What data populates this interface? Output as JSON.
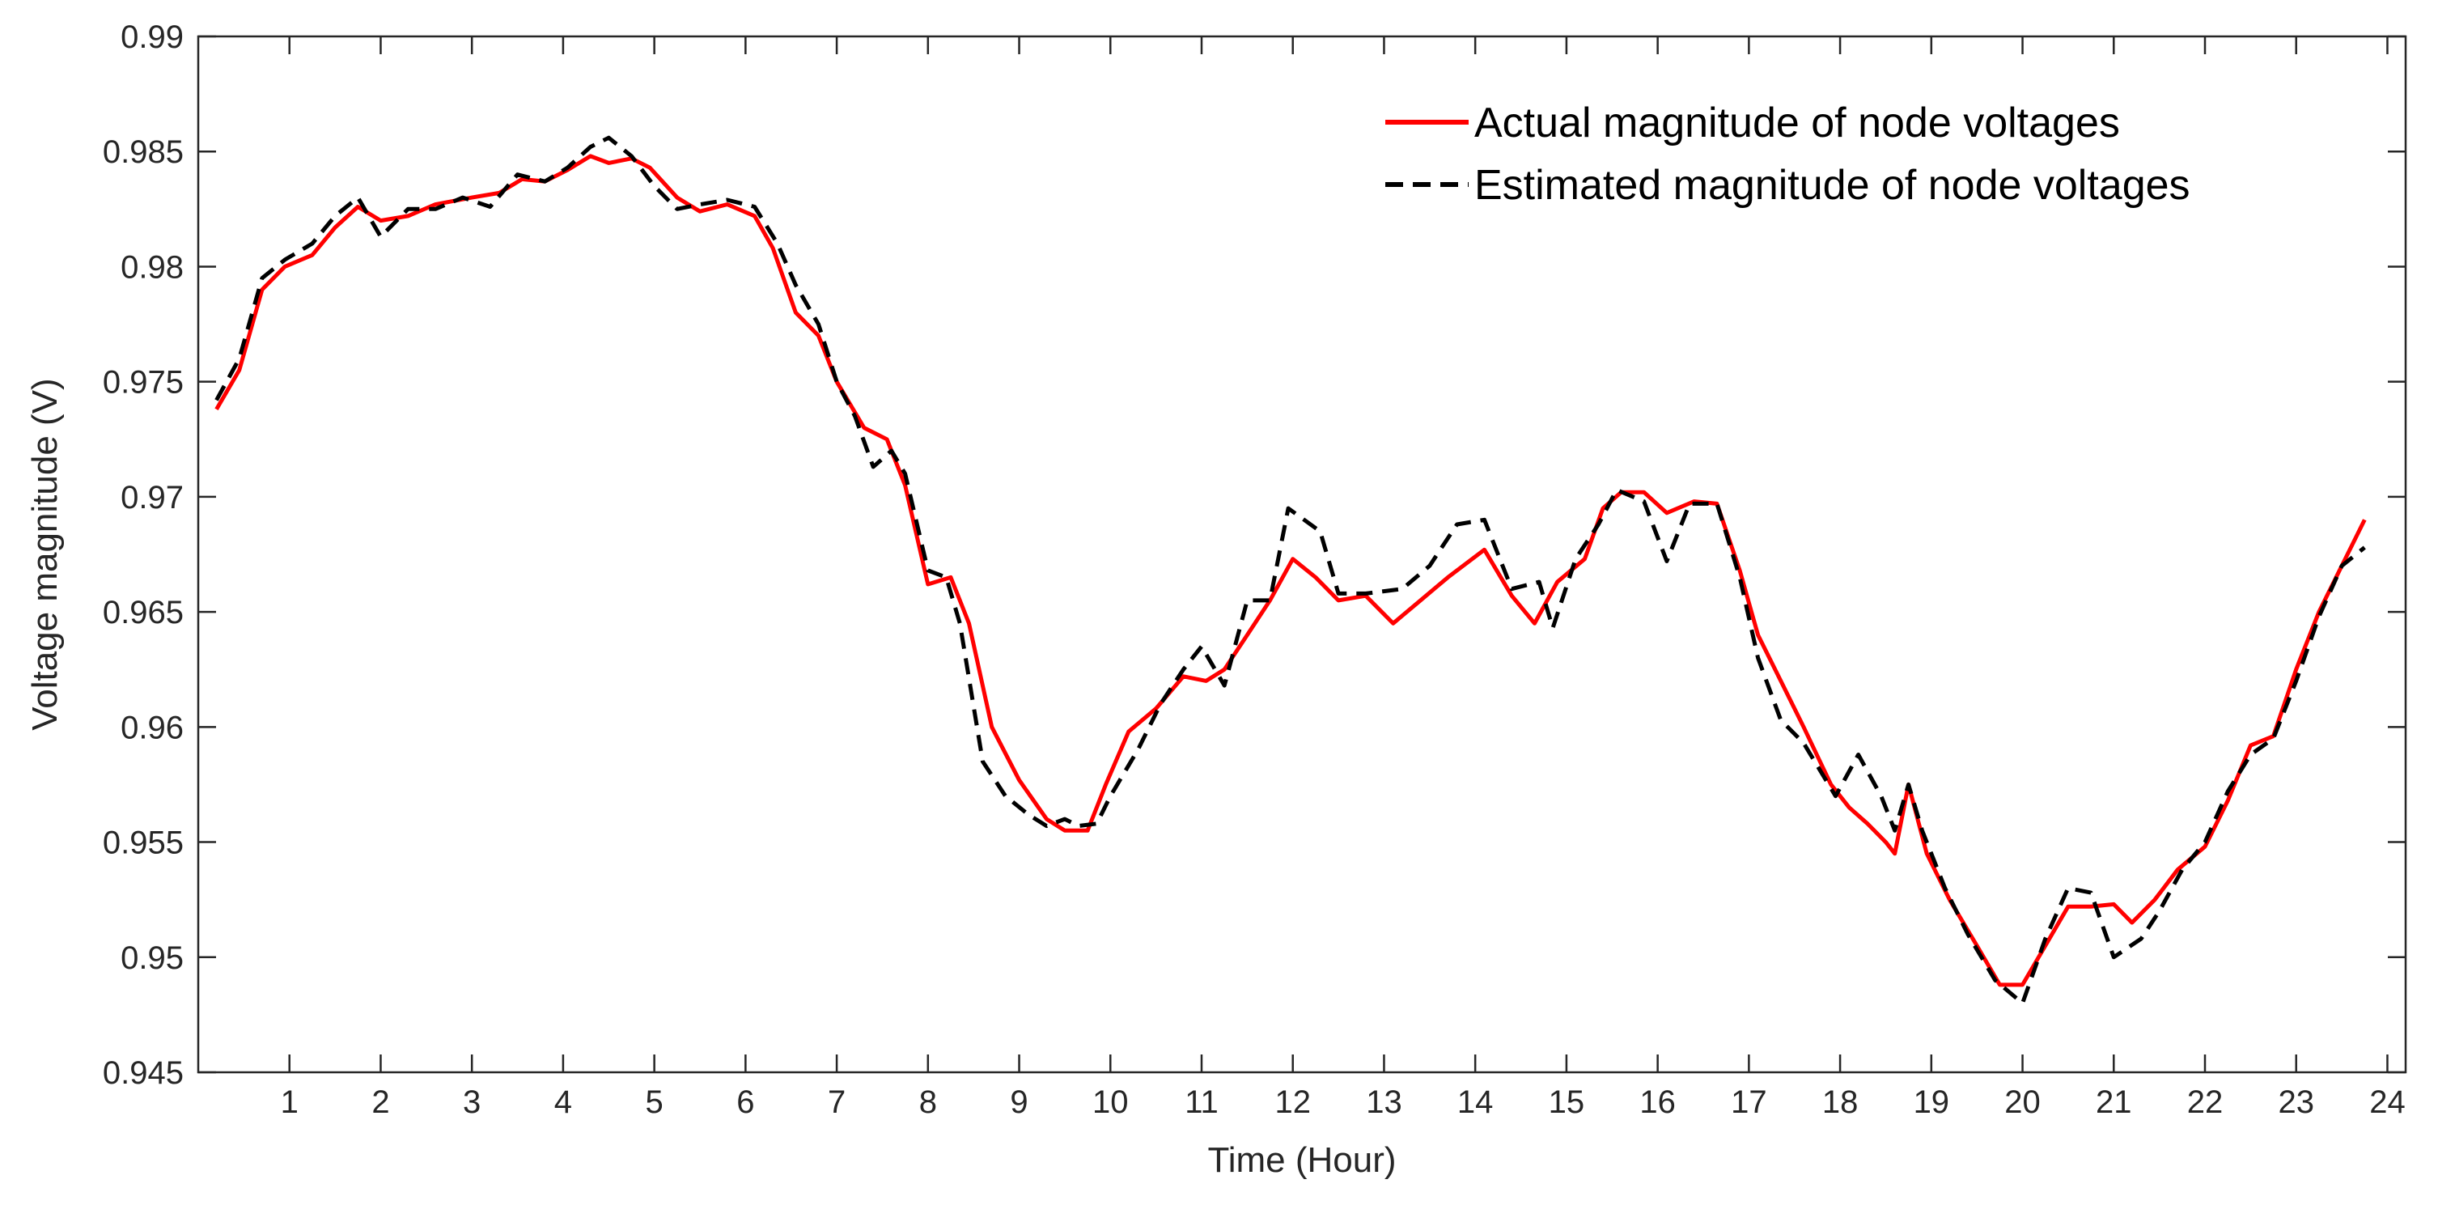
{
  "chart_data": {
    "type": "line",
    "title": "",
    "xlabel": "Time (Hour)",
    "ylabel": "Voltage magnitude (V)",
    "xlim": [
      0,
      24.2
    ],
    "ylim": [
      0.945,
      0.99
    ],
    "x_ticks": [
      "1",
      "2",
      "3",
      "4",
      "5",
      "6",
      "7",
      "8",
      "9",
      "10",
      "11",
      "12",
      "13",
      "14",
      "15",
      "16",
      "17",
      "18",
      "19",
      "20",
      "21",
      "22",
      "23",
      "24"
    ],
    "y_ticks": [
      "0.945",
      "0.95",
      "0.955",
      "0.96",
      "0.965",
      "0.97",
      "0.975",
      "0.98",
      "0.985",
      "0.99"
    ],
    "grid": false,
    "legend_position": "top-right",
    "series": [
      {
        "name": "Actual magnitude of node voltages",
        "color": "#ff0000",
        "style": "solid",
        "points": [
          [
            0.2,
            0.9738
          ],
          [
            0.45,
            0.9755
          ],
          [
            0.7,
            0.979
          ],
          [
            0.95,
            0.98
          ],
          [
            1.25,
            0.9805
          ],
          [
            1.5,
            0.9817
          ],
          [
            1.75,
            0.9826
          ],
          [
            2.0,
            0.982
          ],
          [
            2.3,
            0.9822
          ],
          [
            2.6,
            0.9827
          ],
          [
            3.0,
            0.983
          ],
          [
            3.3,
            0.9832
          ],
          [
            3.55,
            0.9838
          ],
          [
            3.8,
            0.9837
          ],
          [
            4.05,
            0.9842
          ],
          [
            4.3,
            0.9848
          ],
          [
            4.5,
            0.9845
          ],
          [
            4.75,
            0.9847
          ],
          [
            4.95,
            0.9843
          ],
          [
            5.25,
            0.983
          ],
          [
            5.5,
            0.9824
          ],
          [
            5.8,
            0.9827
          ],
          [
            6.1,
            0.9822
          ],
          [
            6.3,
            0.9808
          ],
          [
            6.55,
            0.978
          ],
          [
            6.8,
            0.977
          ],
          [
            7.0,
            0.975
          ],
          [
            7.3,
            0.973
          ],
          [
            7.55,
            0.9725
          ],
          [
            7.75,
            0.9705
          ],
          [
            8.0,
            0.9662
          ],
          [
            8.25,
            0.9665
          ],
          [
            8.45,
            0.9645
          ],
          [
            8.7,
            0.96
          ],
          [
            9.0,
            0.9577
          ],
          [
            9.3,
            0.956
          ],
          [
            9.5,
            0.9555
          ],
          [
            9.75,
            0.9555
          ],
          [
            9.95,
            0.9575
          ],
          [
            10.2,
            0.9598
          ],
          [
            10.5,
            0.9608
          ],
          [
            10.8,
            0.9622
          ],
          [
            11.05,
            0.962
          ],
          [
            11.25,
            0.9625
          ],
          [
            11.5,
            0.964
          ],
          [
            11.75,
            0.9655
          ],
          [
            12.0,
            0.9673
          ],
          [
            12.25,
            0.9665
          ],
          [
            12.5,
            0.9655
          ],
          [
            12.8,
            0.9657
          ],
          [
            13.1,
            0.9645
          ],
          [
            13.4,
            0.9655
          ],
          [
            13.7,
            0.9665
          ],
          [
            14.1,
            0.9677
          ],
          [
            14.4,
            0.9657
          ],
          [
            14.65,
            0.9645
          ],
          [
            14.9,
            0.9663
          ],
          [
            15.2,
            0.9673
          ],
          [
            15.4,
            0.9695
          ],
          [
            15.6,
            0.9702
          ],
          [
            15.85,
            0.9702
          ],
          [
            16.1,
            0.9693
          ],
          [
            16.4,
            0.9698
          ],
          [
            16.65,
            0.9697
          ],
          [
            16.9,
            0.9668
          ],
          [
            17.1,
            0.964
          ],
          [
            17.35,
            0.962
          ],
          [
            17.6,
            0.96
          ],
          [
            17.9,
            0.9575
          ],
          [
            18.1,
            0.9565
          ],
          [
            18.3,
            0.9558
          ],
          [
            18.5,
            0.955
          ],
          [
            18.6,
            0.9545
          ],
          [
            18.75,
            0.9575
          ],
          [
            18.95,
            0.9545
          ],
          [
            19.2,
            0.9525
          ],
          [
            19.5,
            0.9505
          ],
          [
            19.75,
            0.9488
          ],
          [
            20.0,
            0.9488
          ],
          [
            20.25,
            0.9505
          ],
          [
            20.5,
            0.9522
          ],
          [
            20.75,
            0.9522
          ],
          [
            21.0,
            0.9523
          ],
          [
            21.2,
            0.9515
          ],
          [
            21.45,
            0.9525
          ],
          [
            21.7,
            0.9538
          ],
          [
            22.0,
            0.9548
          ],
          [
            22.25,
            0.9568
          ],
          [
            22.5,
            0.9592
          ],
          [
            22.75,
            0.9596
          ],
          [
            23.0,
            0.9625
          ],
          [
            23.25,
            0.965
          ],
          [
            23.5,
            0.967
          ],
          [
            23.75,
            0.969
          ]
        ]
      },
      {
        "name": "Estimated magnitude of node voltages",
        "color": "#000000",
        "style": "dashed",
        "points": [
          [
            0.2,
            0.9742
          ],
          [
            0.45,
            0.976
          ],
          [
            0.7,
            0.9795
          ],
          [
            0.95,
            0.9803
          ],
          [
            1.25,
            0.981
          ],
          [
            1.5,
            0.9822
          ],
          [
            1.75,
            0.983
          ],
          [
            2.0,
            0.9813
          ],
          [
            2.3,
            0.9825
          ],
          [
            2.6,
            0.9825
          ],
          [
            2.9,
            0.983
          ],
          [
            3.2,
            0.9826
          ],
          [
            3.5,
            0.984
          ],
          [
            3.8,
            0.9837
          ],
          [
            4.05,
            0.9843
          ],
          [
            4.3,
            0.9852
          ],
          [
            4.5,
            0.9856
          ],
          [
            4.75,
            0.9848
          ],
          [
            5.0,
            0.9835
          ],
          [
            5.25,
            0.9825
          ],
          [
            5.5,
            0.9827
          ],
          [
            5.8,
            0.9829
          ],
          [
            6.1,
            0.9826
          ],
          [
            6.35,
            0.981
          ],
          [
            6.55,
            0.9792
          ],
          [
            6.8,
            0.9775
          ],
          [
            7.0,
            0.975
          ],
          [
            7.2,
            0.9735
          ],
          [
            7.4,
            0.9713
          ],
          [
            7.6,
            0.972
          ],
          [
            7.75,
            0.971
          ],
          [
            8.0,
            0.9668
          ],
          [
            8.2,
            0.9665
          ],
          [
            8.35,
            0.9645
          ],
          [
            8.6,
            0.9585
          ],
          [
            8.85,
            0.957
          ],
          [
            9.1,
            0.9562
          ],
          [
            9.3,
            0.9557
          ],
          [
            9.5,
            0.956
          ],
          [
            9.65,
            0.9557
          ],
          [
            9.85,
            0.9558
          ],
          [
            10.0,
            0.957
          ],
          [
            10.3,
            0.959
          ],
          [
            10.55,
            0.961
          ],
          [
            10.8,
            0.9625
          ],
          [
            11.0,
            0.9635
          ],
          [
            11.25,
            0.9618
          ],
          [
            11.5,
            0.9655
          ],
          [
            11.75,
            0.9655
          ],
          [
            11.95,
            0.9695
          ],
          [
            12.3,
            0.9685
          ],
          [
            12.5,
            0.9658
          ],
          [
            12.8,
            0.9658
          ],
          [
            13.2,
            0.966
          ],
          [
            13.5,
            0.967
          ],
          [
            13.8,
            0.9688
          ],
          [
            14.1,
            0.969
          ],
          [
            14.4,
            0.966
          ],
          [
            14.7,
            0.9663
          ],
          [
            14.85,
            0.9643
          ],
          [
            15.1,
            0.9673
          ],
          [
            15.35,
            0.9688
          ],
          [
            15.55,
            0.9703
          ],
          [
            15.85,
            0.9698
          ],
          [
            16.1,
            0.9672
          ],
          [
            16.35,
            0.9697
          ],
          [
            16.65,
            0.9697
          ],
          [
            16.9,
            0.9665
          ],
          [
            17.1,
            0.963
          ],
          [
            17.35,
            0.9603
          ],
          [
            17.6,
            0.9593
          ],
          [
            17.95,
            0.957
          ],
          [
            18.2,
            0.9588
          ],
          [
            18.45,
            0.957
          ],
          [
            18.6,
            0.9555
          ],
          [
            18.75,
            0.9575
          ],
          [
            18.9,
            0.9555
          ],
          [
            19.15,
            0.953
          ],
          [
            19.4,
            0.951
          ],
          [
            19.7,
            0.949
          ],
          [
            20.0,
            0.948
          ],
          [
            20.25,
            0.9508
          ],
          [
            20.5,
            0.953
          ],
          [
            20.75,
            0.9528
          ],
          [
            21.0,
            0.95
          ],
          [
            21.3,
            0.9508
          ],
          [
            21.5,
            0.952
          ],
          [
            21.75,
            0.9538
          ],
          [
            22.0,
            0.955
          ],
          [
            22.25,
            0.9572
          ],
          [
            22.5,
            0.9588
          ],
          [
            22.75,
            0.9595
          ],
          [
            23.0,
            0.962
          ],
          [
            23.25,
            0.9648
          ],
          [
            23.5,
            0.967
          ],
          [
            23.75,
            0.9678
          ]
        ]
      }
    ]
  }
}
